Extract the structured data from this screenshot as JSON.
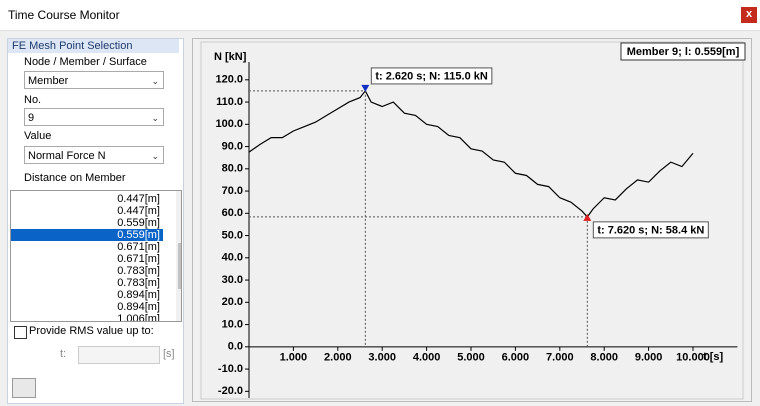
{
  "window": {
    "title": "Time Course Monitor",
    "close": "x"
  },
  "panel": {
    "header": "FE Mesh Point Selection",
    "type_label": "Node / Member / Surface",
    "type_value": "Member",
    "no_label": "No.",
    "no_value": "9",
    "value_label": "Value",
    "value_value": "Normal Force N",
    "distance_label": "Distance on Member",
    "distances": [
      "0.447[m]",
      "0.447[m]",
      "0.559[m]",
      "0.559[m]",
      "0.671[m]",
      "0.671[m]",
      "0.783[m]",
      "0.783[m]",
      "0.894[m]",
      "0.894[m]",
      "1.006[m]"
    ],
    "rms_label": "Provide RMS value up to:",
    "t_label": "t:",
    "t_unit": "[s]"
  },
  "chart_data": {
    "type": "line",
    "info": "Member 9; l: 0.559[m]",
    "y_label": "N [kN]",
    "x_label": "t [s]",
    "x": [
      0,
      0.25,
      0.5,
      0.75,
      1.0,
      1.25,
      1.5,
      1.75,
      2.0,
      2.25,
      2.5,
      2.62,
      2.75,
      3.0,
      3.25,
      3.5,
      3.75,
      4.0,
      4.25,
      4.5,
      4.75,
      5.0,
      5.25,
      5.5,
      5.75,
      6.0,
      6.25,
      6.5,
      6.75,
      7.0,
      7.25,
      7.5,
      7.62,
      7.75,
      8.0,
      8.25,
      8.5,
      8.75,
      9.0,
      9.25,
      9.5,
      9.75,
      10.0
    ],
    "series": [
      {
        "name": "N",
        "color": "#000000",
        "values": [
          87.5,
          91,
          94,
          94,
          97,
          99,
          101,
          104,
          107,
          110,
          112,
          115,
          110,
          108,
          110,
          105,
          104,
          100,
          99,
          95,
          94,
          89,
          88,
          84,
          83,
          78,
          77,
          73,
          72,
          67,
          65,
          61,
          58.4,
          62,
          67,
          66,
          71,
          75,
          74,
          79,
          83,
          81,
          87
        ]
      }
    ],
    "annotations": [
      {
        "text": "t: 2.620 s; N: 115.0 kN",
        "x": 2.62,
        "y": 115.0,
        "color": "#1030c0"
      },
      {
        "text": "t: 7.620 s; N: 58.4 kN",
        "x": 7.62,
        "y": 58.4,
        "color": "#e02020"
      }
    ],
    "xlim": [
      0,
      11
    ],
    "ylim": [
      -23,
      128
    ],
    "xticks": [
      {
        "value": 1,
        "label": "1.000"
      },
      {
        "value": 2,
        "label": "2.000"
      },
      {
        "value": 3,
        "label": "3.000"
      },
      {
        "value": 4,
        "label": "4.000"
      },
      {
        "value": 5,
        "label": "5.000"
      },
      {
        "value": 6,
        "label": "6.000"
      },
      {
        "value": 7,
        "label": "7.000"
      },
      {
        "value": 8,
        "label": "8.000"
      },
      {
        "value": 9,
        "label": "9.000"
      },
      {
        "value": 10,
        "label": "10.000"
      }
    ],
    "yticks": [
      {
        "value": -20,
        "label": "-20.0"
      },
      {
        "value": -10,
        "label": "-10.0"
      },
      {
        "value": 0,
        "label": "0.0"
      },
      {
        "value": 10,
        "label": "10.0"
      },
      {
        "value": 20,
        "label": "20.0"
      },
      {
        "value": 30,
        "label": "30.0"
      },
      {
        "value": 40,
        "label": "40.0"
      },
      {
        "value": 50,
        "label": "50.0"
      },
      {
        "value": 60,
        "label": "60.0"
      },
      {
        "value": 70,
        "label": "70.0"
      },
      {
        "value": 80,
        "label": "80.0"
      },
      {
        "value": 90,
        "label": "90.0"
      },
      {
        "value": 100,
        "label": "100.0"
      },
      {
        "value": 110,
        "label": "110.0"
      },
      {
        "value": 120,
        "label": "120.0"
      }
    ],
    "grid": false
  }
}
